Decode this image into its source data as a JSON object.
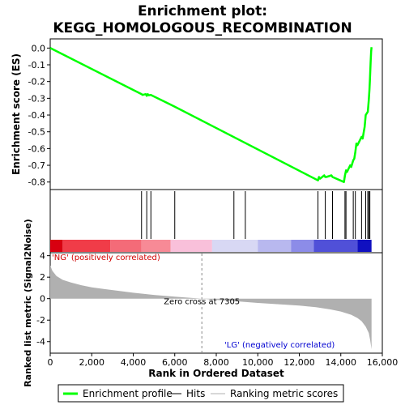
{
  "chart_data": {
    "type": "line",
    "title_line1": "Enrichment plot:",
    "title_line2": "KEGG_HOMOLOGOUS_RECOMBINATION",
    "es_panel": {
      "ylabel": "Enrichment score (ES)",
      "ylim": [
        -0.84,
        0.05
      ],
      "yticks": [
        0.0,
        -0.1,
        -0.2,
        -0.3,
        -0.4,
        -0.5,
        -0.6,
        -0.7,
        -0.8
      ],
      "ytick_labels": [
        "0.0",
        "-0.1",
        "-0.2",
        "-0.3",
        "-0.4",
        "-0.5",
        "-0.6",
        "-0.7",
        "-0.8"
      ],
      "line_color": "#00ff00",
      "x": [
        0,
        4400,
        4450,
        4600,
        4650,
        4700,
        4750,
        4850,
        6000,
        12900,
        12950,
        13000,
        13200,
        13250,
        13300,
        13550,
        13600,
        14150,
        14200,
        14250,
        14300,
        14450,
        14500,
        14600,
        14650,
        14700,
        14750,
        14800,
        15000,
        15050,
        15150,
        15200,
        15300,
        15350,
        15380,
        15400,
        15420,
        15440,
        15460,
        15480
      ],
      "y": [
        0.0,
        -0.275,
        -0.28,
        -0.275,
        -0.285,
        -0.275,
        -0.282,
        -0.28,
        -0.35,
        -0.79,
        -0.77,
        -0.78,
        -0.76,
        -0.77,
        -0.77,
        -0.76,
        -0.77,
        -0.8,
        -0.76,
        -0.73,
        -0.74,
        -0.7,
        -0.71,
        -0.67,
        -0.66,
        -0.62,
        -0.57,
        -0.58,
        -0.53,
        -0.54,
        -0.47,
        -0.4,
        -0.38,
        -0.31,
        -0.25,
        -0.2,
        -0.14,
        -0.08,
        -0.02,
        0.005
      ]
    },
    "hits": [
      4400,
      4650,
      4850,
      6000,
      8850,
      9400,
      12900,
      13250,
      13600,
      14200,
      14250,
      14600,
      14700,
      15000,
      15200,
      15300,
      15350,
      15400
    ],
    "xlim": [
      0,
      16000
    ],
    "xticks": [
      0,
      2000,
      4000,
      6000,
      8000,
      10000,
      12000,
      14000,
      16000
    ],
    "xtick_labels": [
      "0",
      "2,000",
      "4,000",
      "6,000",
      "8,000",
      "10,000",
      "12,000",
      "14,000",
      "16,000"
    ],
    "xlabel": "Rank in Ordered Dataset",
    "color_bar": {
      "segments": [
        {
          "x0": 0,
          "x1": 600,
          "color": "#d80010"
        },
        {
          "x0": 600,
          "x1": 2900,
          "color": "#f03c48"
        },
        {
          "x0": 2900,
          "x1": 4400,
          "color": "#f46b78"
        },
        {
          "x0": 4400,
          "x1": 5800,
          "color": "#f78a96"
        },
        {
          "x0": 5800,
          "x1": 7800,
          "color": "#f9c0da"
        },
        {
          "x0": 7800,
          "x1": 10000,
          "color": "#d8d8f4"
        },
        {
          "x0": 10000,
          "x1": 11600,
          "color": "#b8b8ef"
        },
        {
          "x0": 11600,
          "x1": 12700,
          "color": "#8c8ce8"
        },
        {
          "x0": 12700,
          "x1": 14800,
          "color": "#5050d8"
        },
        {
          "x0": 14800,
          "x1": 15480,
          "color": "#1010c0"
        }
      ]
    },
    "metric_panel": {
      "ylabel": "Ranked list metric (Signal2Noise)",
      "ylim": [
        -5,
        4.2
      ],
      "yticks": [
        4,
        2,
        0,
        -2,
        -4
      ],
      "ytick_labels": [
        "4",
        "2",
        "0",
        "-2",
        "-4"
      ],
      "x": [
        0,
        100,
        300,
        600,
        1000,
        1500,
        2000,
        3000,
        4000,
        5000,
        6000,
        7305,
        8000,
        9000,
        10000,
        11000,
        12000,
        12800,
        13500,
        14000,
        14500,
        14800,
        15000,
        15200,
        15350,
        15420,
        15480
      ],
      "y": [
        3.1,
        2.6,
        2.1,
        1.75,
        1.5,
        1.25,
        1.05,
        0.8,
        0.55,
        0.35,
        0.18,
        0.0,
        -0.12,
        -0.25,
        -0.4,
        -0.52,
        -0.65,
        -0.8,
        -1.0,
        -1.2,
        -1.5,
        -1.8,
        -2.1,
        -2.6,
        -3.2,
        -3.9,
        -4.7
      ],
      "fill_color": "#b0b0b0",
      "zero_cross_label": "Zero cross at 7305",
      "zero_cross": 7305,
      "pos_label": "'NG' (positively correlated)",
      "neg_label": "'LG' (negatively correlated)"
    },
    "legend": {
      "items": [
        {
          "label": "Enrichment profile",
          "color": "#00ff00"
        },
        {
          "label": "Hits",
          "color": "#000000"
        },
        {
          "label": "Ranking metric scores",
          "color": "#b0b0b0"
        }
      ]
    }
  }
}
